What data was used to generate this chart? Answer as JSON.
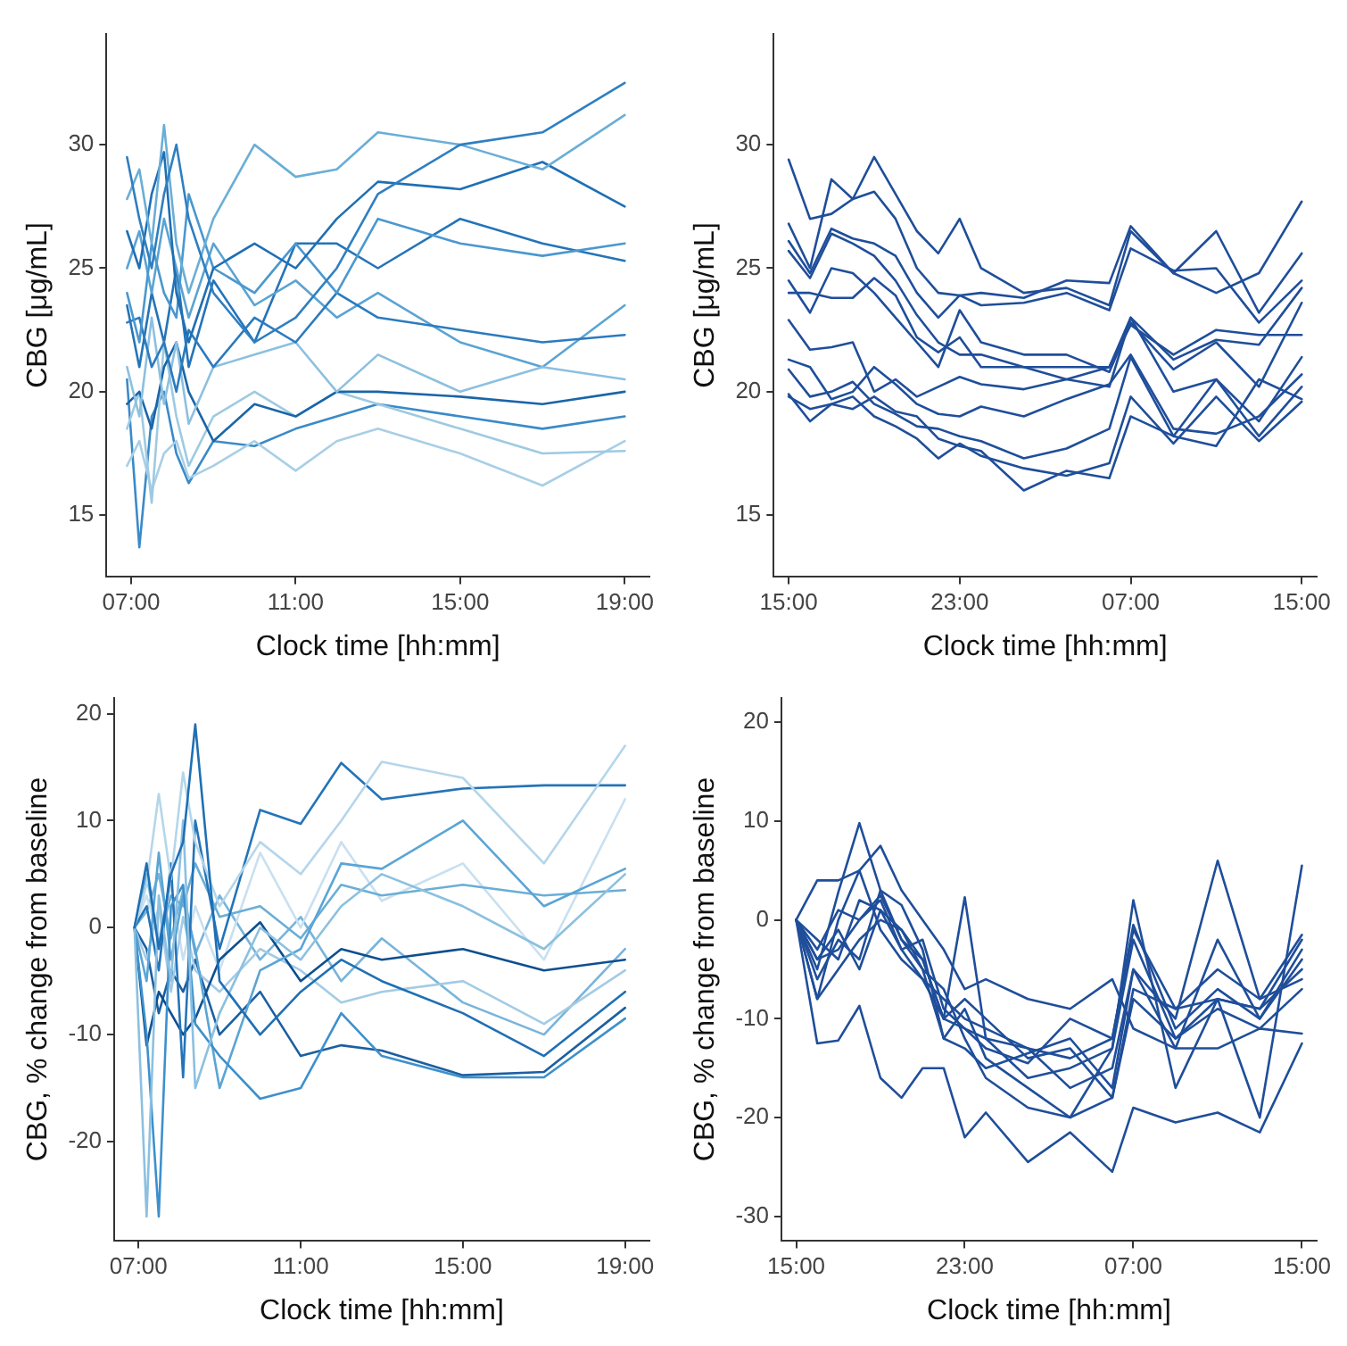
{
  "chart_data": [
    {
      "type": "line",
      "xlabel": "Clock time [hh:mm]",
      "ylabel": "CBG [μg/mL]",
      "x": [
        6.9,
        7.2,
        7.5,
        7.8,
        8.1,
        8.4,
        9,
        10,
        11,
        12,
        13,
        15,
        17,
        19
      ],
      "xlim": [
        6.4,
        19.6
      ],
      "xticks": [
        {
          "value": 7,
          "label": "07:00"
        },
        {
          "value": 11,
          "label": "11:00"
        },
        {
          "value": 15,
          "label": "15:00"
        },
        {
          "value": 19,
          "label": "19:00"
        }
      ],
      "ylim": [
        12.5,
        34.5
      ],
      "yticks": [
        15,
        20,
        25,
        30
      ],
      "grid": false,
      "legend": false,
      "marker": "none",
      "line_style": "solid",
      "series": [
        {
          "color": "#2f7fc1",
          "values": [
            29.5,
            27,
            25,
            28,
            30,
            27,
            24,
            22,
            23,
            25,
            28,
            30,
            30.5,
            32.5
          ]
        },
        {
          "color": "#6aaed6",
          "values": [
            27.8,
            29,
            26,
            30.8,
            26,
            24,
            27,
            30,
            28.7,
            29,
            30.5,
            30,
            29,
            31.2
          ]
        },
        {
          "color": "#1f6fb4",
          "values": [
            26.5,
            25,
            28,
            29.7,
            24,
            22,
            25,
            26,
            25,
            27,
            28.5,
            28.2,
            29.3,
            27.5
          ]
        },
        {
          "color": "#4a98cf",
          "values": [
            24,
            22,
            26,
            24,
            23,
            28,
            25,
            24,
            26,
            24,
            27,
            26,
            25.5,
            26
          ]
        },
        {
          "color": "#2b7bbf",
          "values": [
            22.8,
            23,
            21,
            22,
            20,
            22.5,
            21,
            23,
            22,
            24,
            23,
            22.5,
            22,
            22.3
          ]
        },
        {
          "color": "#8cc0e0",
          "values": [
            21,
            19,
            23,
            19.5,
            22,
            18.7,
            21,
            21.5,
            22,
            20,
            21.5,
            20,
            21,
            20.5
          ]
        },
        {
          "color": "#1a65a8",
          "values": [
            19.5,
            20,
            18.5,
            21,
            22,
            20,
            18,
            19.5,
            19,
            20,
            20,
            19.8,
            19.5,
            20
          ]
        },
        {
          "color": "#9ecae1",
          "values": [
            18.5,
            20,
            15.5,
            22,
            19,
            17,
            19,
            20,
            19,
            20,
            19.5,
            18.5,
            17.5,
            17.6
          ]
        },
        {
          "color": "#a8cfe6",
          "values": [
            17,
            18,
            16,
            17.5,
            18,
            16.5,
            17,
            18,
            16.8,
            18,
            18.5,
            17.5,
            16.2,
            18
          ]
        },
        {
          "color": "#3a8ac8",
          "values": [
            20.5,
            13.7,
            19,
            20,
            17.5,
            16.3,
            18,
            17.8,
            18.5,
            19,
            19.5,
            19,
            18.5,
            19
          ]
        },
        {
          "color": "#5ba3d3",
          "values": [
            25,
            26.5,
            24,
            27,
            25,
            23,
            26,
            23.5,
            24.5,
            23,
            24,
            22,
            21,
            23.5
          ]
        },
        {
          "color": "#2474b8",
          "values": [
            23.5,
            21,
            24,
            22,
            25,
            21,
            24.5,
            22,
            26,
            26,
            25,
            27,
            26,
            25.3
          ]
        }
      ]
    },
    {
      "type": "line",
      "xlabel": "Clock time [hh:mm]",
      "ylabel": "CBG [μg/mL]",
      "x": [
        "--01-01T15:00",
        "--01-01T16:00",
        "--01-01T17:00",
        "--01-01T18:00",
        "--01-01T19:00",
        "--01-01T20:00",
        "--01-01T21:00",
        "--01-01T22:00",
        "--01-01T23:00",
        "--01-02T00:00",
        "--01-02T02:00",
        "--01-02T04:00",
        "--01-02T06:00",
        "--01-02T07:00",
        "--01-02T09:00",
        "--01-02T11:00",
        "--01-02T13:00",
        "--01-02T15:00"
      ],
      "xlim": [
        "--01-01T14:18",
        "--01-02T15:42"
      ],
      "xticks": [
        {
          "value": "--01-01T15:00",
          "label": "15:00"
        },
        {
          "value": "--01-01T23:00",
          "label": "23:00"
        },
        {
          "value": "--01-02T07:00",
          "label": "07:00"
        },
        {
          "value": "--01-02T15:00",
          "label": "15:00"
        }
      ],
      "ylim": [
        12.5,
        34.5
      ],
      "yticks": [
        15,
        20,
        25,
        30
      ],
      "grid": false,
      "legend": false,
      "marker": "none",
      "line_style": "solid",
      "series": [
        {
          "color": "#1f4e9a",
          "values": [
            29.4,
            27,
            27.2,
            27.8,
            29.5,
            28,
            26.5,
            25.6,
            27,
            25,
            24,
            24.2,
            23.5,
            26.5,
            24.8,
            24,
            24.8,
            27.7
          ]
        },
        {
          "color": "#1f4e9a",
          "values": [
            26.8,
            25,
            28.6,
            27.8,
            28.1,
            27,
            25,
            24,
            23.9,
            24,
            23.8,
            24.5,
            24.4,
            26.7,
            24.8,
            26.5,
            23.2,
            25.6
          ]
        },
        {
          "color": "#1f4e9a",
          "values": [
            26.1,
            24.8,
            26.6,
            26.2,
            26,
            25.5,
            24,
            23,
            23.9,
            23.5,
            23.6,
            24,
            23.3,
            25.8,
            24.9,
            25,
            22.8,
            24.5
          ]
        },
        {
          "color": "#1f4e9a",
          "values": [
            25.7,
            24.6,
            26.4,
            26,
            25.5,
            24.5,
            23.1,
            22,
            21.5,
            21.5,
            21,
            21,
            21,
            22.7,
            21.5,
            22.5,
            22.3,
            22.3
          ]
        },
        {
          "color": "#1f4e9a",
          "values": [
            24.5,
            23.2,
            25,
            24.8,
            24,
            23,
            22,
            21,
            23.3,
            22,
            21.5,
            21.5,
            20.8,
            22.8,
            20.9,
            22,
            20.2,
            23.6
          ]
        },
        {
          "color": "#1f4e9a",
          "values": [
            24,
            24,
            23.8,
            23.8,
            24.6,
            23.9,
            22.2,
            21.6,
            22.2,
            21,
            21,
            20.5,
            20.2,
            23,
            21.3,
            22.1,
            21.9,
            24.2
          ]
        },
        {
          "color": "#1f4e9a",
          "values": [
            22.9,
            21.7,
            21.8,
            22,
            20,
            20.5,
            19.8,
            20.2,
            20.6,
            20.3,
            20.1,
            20.5,
            21,
            23,
            20,
            20.5,
            18.8,
            21.4
          ]
        },
        {
          "color": "#1f4e9a",
          "values": [
            21.3,
            21,
            19.7,
            20,
            21,
            20.3,
            19.5,
            19.1,
            19,
            19.4,
            19,
            19.7,
            20.3,
            21.5,
            18.5,
            18.3,
            19,
            20.7
          ]
        },
        {
          "color": "#1f4e9a",
          "values": [
            20.9,
            19.8,
            20,
            20.4,
            19.5,
            19.1,
            18.6,
            18.5,
            18.2,
            18,
            17.3,
            17.7,
            18.5,
            21.4,
            18.2,
            17.8,
            20.5,
            19.7
          ]
        },
        {
          "color": "#1f4e9a",
          "values": [
            19.9,
            18.8,
            19.5,
            19.8,
            19,
            18.6,
            18.1,
            17.3,
            17.9,
            17.4,
            16.9,
            16.6,
            17.1,
            19.8,
            17.9,
            19.8,
            18,
            19.6
          ]
        },
        {
          "color": "#1f4e9a",
          "values": [
            19.8,
            19.3,
            19.5,
            19.3,
            19.8,
            19.2,
            19,
            18.1,
            17.8,
            17.6,
            16,
            16.8,
            16.5,
            19,
            18.2,
            20.5,
            18.2,
            20.2
          ]
        }
      ]
    },
    {
      "type": "line",
      "xlabel": "Clock time [hh:mm]",
      "ylabel": "CBG, % change from baseline",
      "x": [
        6.9,
        7.2,
        7.5,
        7.8,
        8.1,
        8.4,
        9,
        10,
        11,
        12,
        13,
        15,
        17,
        19
      ],
      "xlim": [
        6.4,
        19.6
      ],
      "xticks": [
        {
          "value": 7,
          "label": "07:00"
        },
        {
          "value": 11,
          "label": "11:00"
        },
        {
          "value": 15,
          "label": "15:00"
        },
        {
          "value": 19,
          "label": "19:00"
        }
      ],
      "ylim": [
        -29.3,
        21.5
      ],
      "yticks": [
        -20,
        -10,
        0,
        10,
        20
      ],
      "grid": false,
      "legend": false,
      "marker": "none",
      "line_style": "solid",
      "series": [
        {
          "color": "#1f6fb4",
          "values": [
            0,
            6,
            -2,
            5,
            8,
            19,
            -5,
            -10,
            -6,
            -3,
            -5,
            -8,
            -12,
            -6
          ]
        },
        {
          "color": "#8cc0e0",
          "values": [
            0,
            -27,
            3,
            -5,
            10,
            -15,
            -8,
            0,
            -3,
            2,
            5,
            2,
            -2,
            5
          ]
        },
        {
          "color": "#3d90cc",
          "values": [
            0,
            -10,
            -27,
            2,
            4,
            -9,
            -12,
            -16,
            -15,
            -8,
            -12,
            -14,
            -14,
            -8.5
          ]
        },
        {
          "color": "#b5d6ea",
          "values": [
            0,
            4,
            12.5,
            4.5,
            14.5,
            8,
            2,
            8,
            5,
            10,
            15.5,
            14,
            6,
            17
          ]
        },
        {
          "color": "#2474b8",
          "values": [
            0,
            2,
            -4,
            6,
            -14,
            10,
            -2,
            11,
            9.7,
            15.4,
            12,
            13,
            13.3,
            13.3
          ]
        },
        {
          "color": "#5aa5d5",
          "values": [
            0,
            -5,
            7,
            -3,
            3,
            -2,
            -15,
            -4,
            -2,
            6,
            5.5,
            10,
            2,
            5.5
          ]
        },
        {
          "color": "#0d4f8f",
          "values": [
            0,
            -11,
            -6,
            -8,
            -10,
            -8.5,
            -3,
            0.5,
            -5,
            -2,
            -3,
            -2,
            -4,
            -3
          ]
        },
        {
          "color": "#6aaed6",
          "values": [
            0,
            5,
            -1.5,
            3,
            2,
            6,
            1,
            2,
            -1,
            4,
            3,
            4,
            3,
            3.5
          ]
        },
        {
          "color": "#a3cbe5",
          "values": [
            0,
            -3,
            2,
            -6,
            1,
            -4,
            -6,
            -2,
            -4,
            -7,
            -6,
            -5,
            -9,
            -4
          ]
        },
        {
          "color": "#c9e0f0",
          "values": [
            0,
            3,
            -1,
            4,
            -3,
            2,
            -4,
            7,
            0,
            8,
            2.5,
            6,
            -3,
            12
          ]
        },
        {
          "color": "#1c5fa0",
          "values": [
            0,
            -2,
            -8,
            -4,
            -6,
            -3,
            -10,
            -6,
            -12,
            -11,
            -11.5,
            -13.8,
            -13.5,
            -7.5
          ]
        },
        {
          "color": "#78b4db",
          "values": [
            0,
            1.5,
            5,
            -1,
            3.5,
            -2.5,
            3,
            -3,
            1,
            -5,
            -1,
            -7,
            -10,
            -2
          ]
        }
      ]
    },
    {
      "type": "line",
      "xlabel": "Clock time [hh:mm]",
      "ylabel": "CBG, % change from baseline",
      "x": [
        "--01-01T15:00",
        "--01-01T16:00",
        "--01-01T17:00",
        "--01-01T18:00",
        "--01-01T19:00",
        "--01-01T20:00",
        "--01-01T21:00",
        "--01-01T22:00",
        "--01-01T23:00",
        "--01-02T00:00",
        "--01-02T02:00",
        "--01-02T04:00",
        "--01-02T06:00",
        "--01-02T07:00",
        "--01-02T09:00",
        "--01-02T11:00",
        "--01-02T13:00",
        "--01-02T15:00"
      ],
      "xlim": [
        "--01-01T14:18",
        "--01-02T15:42"
      ],
      "xticks": [
        {
          "value": "--01-01T15:00",
          "label": "15:00"
        },
        {
          "value": "--01-01T23:00",
          "label": "23:00"
        },
        {
          "value": "--01-02T07:00",
          "label": "07:00"
        },
        {
          "value": "--01-02T15:00",
          "label": "15:00"
        }
      ],
      "ylim": [
        -32.5,
        22.5
      ],
      "yticks": [
        -30,
        -20,
        -10,
        0,
        10,
        20
      ],
      "grid": false,
      "legend": false,
      "marker": "none",
      "line_style": "solid",
      "series": [
        {
          "color": "#1f4e9a",
          "values": [
            0,
            -12.5,
            -12.2,
            -8.7,
            -16,
            -18,
            -15,
            -15,
            -22,
            -19.5,
            -24.5,
            -21.5,
            -25.5,
            -19,
            -20.5,
            -19.5,
            -21.5,
            -12.5
          ]
        },
        {
          "color": "#1f4e9a",
          "values": [
            0,
            4,
            4,
            5,
            7.5,
            3,
            0,
            -3,
            -7,
            -6,
            -8,
            -9,
            -6,
            -11,
            -13,
            -13,
            -11,
            -11.5
          ]
        },
        {
          "color": "#1f4e9a",
          "values": [
            0,
            -5,
            2.8,
            9.8,
            3,
            -2,
            -4,
            -10,
            -11,
            -12,
            -16,
            -15,
            -13,
            -2,
            -12,
            -8,
            -9,
            -5
          ]
        },
        {
          "color": "#1f4e9a",
          "values": [
            0,
            -8,
            0,
            5,
            -1,
            -4,
            -6,
            -8,
            -10,
            -11,
            -13,
            -14,
            -12,
            -0.5,
            -11,
            -7,
            -10,
            -3
          ]
        },
        {
          "color": "#1f4e9a",
          "values": [
            0,
            -4,
            -3,
            0,
            2,
            -3,
            -6,
            -10,
            2.3,
            -12,
            -13,
            -17,
            -15,
            -5,
            -10,
            6,
            -8,
            -1.5
          ]
        },
        {
          "color": "#1f4e9a",
          "values": [
            0,
            -2,
            -4,
            2,
            1,
            -1,
            -4,
            -10,
            -8,
            -10,
            -14,
            -13,
            -18,
            -7,
            -9,
            -5,
            -8,
            -6
          ]
        },
        {
          "color": "#1f4e9a",
          "values": [
            0,
            -6,
            -2,
            -4,
            3,
            1.5,
            -3,
            -12,
            -9,
            -14,
            -17,
            -20,
            -18,
            -8,
            -12,
            -9,
            -11,
            -7
          ]
        },
        {
          "color": "#1f4e9a",
          "values": [
            0,
            -3,
            1,
            0,
            2.5,
            -2,
            -5,
            -12,
            -13,
            -15,
            -13.5,
            -12,
            -17,
            -5,
            -13,
            -2,
            -10,
            -4
          ]
        },
        {
          "color": "#1f4e9a",
          "values": [
            0,
            -8,
            -5,
            -2,
            0,
            -1,
            -5,
            -7,
            -12,
            -16,
            -19,
            -20,
            -13,
            2,
            -17,
            -8,
            -20,
            5.5
          ]
        },
        {
          "color": "#1f4e9a",
          "values": [
            0,
            -4,
            -1,
            -5,
            1,
            -3,
            -2,
            -9,
            -11,
            -13,
            -14.5,
            -10,
            -12,
            -1,
            -9,
            -8,
            -9,
            -2
          ]
        }
      ]
    }
  ]
}
